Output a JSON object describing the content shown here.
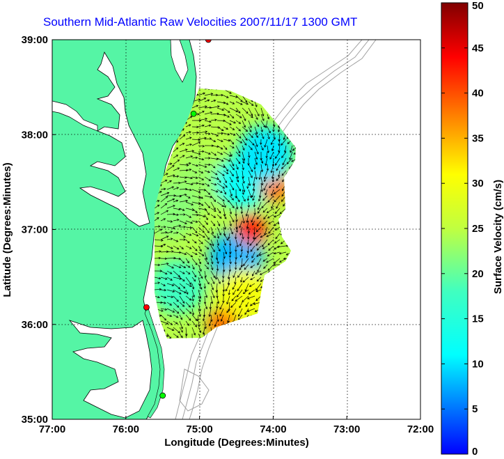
{
  "title": "Southern Mid-Atlantic Raw Velocities 2007/11/17 1300 GMT",
  "axes": {
    "xlabel": "Longitude (Degrees:Minutes)",
    "ylabel": "Latitude (Degrees:Minutes)",
    "x_ticks": [
      "77:00",
      "76:00",
      "75:00",
      "74:00",
      "73:00",
      "72:00"
    ],
    "y_ticks": [
      "39:00",
      "38:00",
      "37:00",
      "36:00",
      "35:00"
    ],
    "x_range": [
      -77,
      -72
    ],
    "y_range": [
      35,
      39
    ],
    "grid": "dotted"
  },
  "colorbar": {
    "label": "Surface Velocity (cm/s)",
    "ticks": [
      "50",
      "45",
      "40",
      "35",
      "30",
      "25",
      "20",
      "15",
      "10",
      "5",
      "0"
    ],
    "range": [
      0,
      50
    ],
    "colormap": "jet"
  },
  "colors": {
    "land": "#55f5a5",
    "water": "#ffffff",
    "title": "#0000ff",
    "bathymetry": "#a0a0a0",
    "station_red": "#ff0000",
    "station_green": "#00ff00"
  },
  "stations": [
    {
      "color": "red",
      "lon": -74.88,
      "lat": 39.0
    },
    {
      "color": "green",
      "lon": -75.08,
      "lat": 38.22
    },
    {
      "color": "red",
      "lon": -75.72,
      "lat": 36.18
    },
    {
      "color": "green",
      "lon": -75.5,
      "lat": 35.25
    }
  ],
  "chart_data": {
    "type": "heatmap",
    "variable": "Surface Velocity",
    "units": "cm/s",
    "x_range": [
      -77,
      -72
    ],
    "y_range": [
      35,
      39
    ],
    "value_range": [
      0,
      50
    ],
    "regions": [
      {
        "lon": -75.0,
        "lat": 37.5,
        "value": 23
      },
      {
        "lon": -75.4,
        "lat": 37.2,
        "value": 22
      },
      {
        "lon": -74.4,
        "lat": 37.5,
        "value": 12
      },
      {
        "lon": -74.5,
        "lat": 36.7,
        "value": 8
      },
      {
        "lon": -74.3,
        "lat": 37.0,
        "value": 42
      },
      {
        "lon": -73.97,
        "lat": 37.45,
        "value": 38
      },
      {
        "lon": -74.1,
        "lat": 37.8,
        "value": 10
      },
      {
        "lon": -74.4,
        "lat": 36.3,
        "value": 30
      },
      {
        "lon": -74.7,
        "lat": 36.0,
        "value": 38
      },
      {
        "lon": -75.3,
        "lat": 36.4,
        "value": 18
      }
    ]
  }
}
